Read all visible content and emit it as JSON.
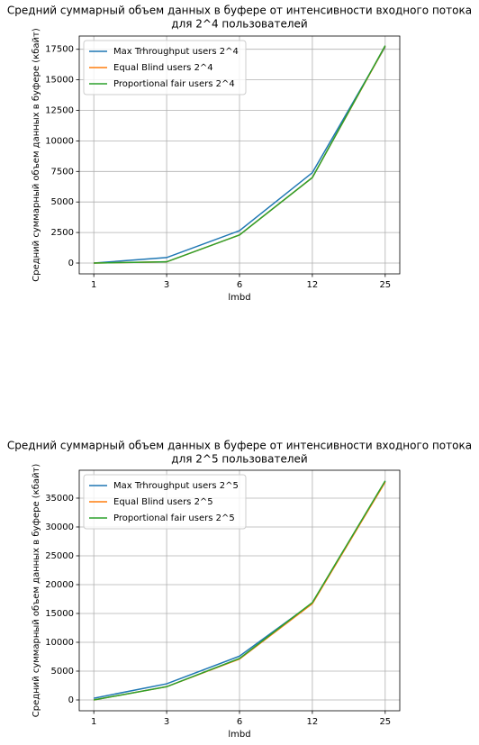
{
  "chart_data": [
    {
      "type": "line",
      "title": [
        "Средний суммарный объем данных в буфере от интенсивности входного потока",
        "для 2^4 пользователей"
      ],
      "xlabel": "lmbd",
      "ylabel": "Средний суммарный объем данных в буфере (кбайт)",
      "categories": [
        "1",
        "3",
        "6",
        "12",
        "25"
      ],
      "series": [
        {
          "name": "Max Trhroughput users 2^4",
          "color": "#1f77b4",
          "values": [
            0,
            450,
            2650,
            7400,
            17700
          ]
        },
        {
          "name": "Equal Blind users 2^4",
          "color": "#ff7f0e",
          "values": [
            0,
            100,
            2300,
            7000,
            17750
          ]
        },
        {
          "name": "Proportional fair users 2^4",
          "color": "#2ca02c",
          "values": [
            0,
            100,
            2300,
            7000,
            17800
          ]
        }
      ],
      "ylim": [
        -885,
        18585
      ],
      "yticks": [
        0,
        2500,
        5000,
        7500,
        10000,
        12500,
        15000,
        17500
      ],
      "grid": true,
      "legend": "upper-left"
    },
    {
      "type": "line",
      "title": [
        "Средний суммарный объем данных в буфере от интенсивности входного потока",
        "для 2^5 пользователей"
      ],
      "xlabel": "lmbd",
      "ylabel": "Средний суммарный объем данных в буфере (кбайт)",
      "categories": [
        "1",
        "3",
        "6",
        "12",
        "25"
      ],
      "series": [
        {
          "name": "Max Trhroughput users 2^5",
          "color": "#1f77b4",
          "values": [
            300,
            2800,
            7600,
            16800,
            37900
          ]
        },
        {
          "name": "Equal Blind users 2^5",
          "color": "#ff7f0e",
          "values": [
            0,
            2300,
            7100,
            16700,
            37800
          ]
        },
        {
          "name": "Proportional fair users 2^5",
          "color": "#2ca02c",
          "values": [
            0,
            2300,
            7200,
            16900,
            38000
          ]
        }
      ],
      "ylim": [
        -1875,
        39840
      ],
      "yticks": [
        0,
        5000,
        10000,
        15000,
        20000,
        25000,
        30000,
        35000
      ],
      "grid": true,
      "legend": "upper-left"
    }
  ]
}
